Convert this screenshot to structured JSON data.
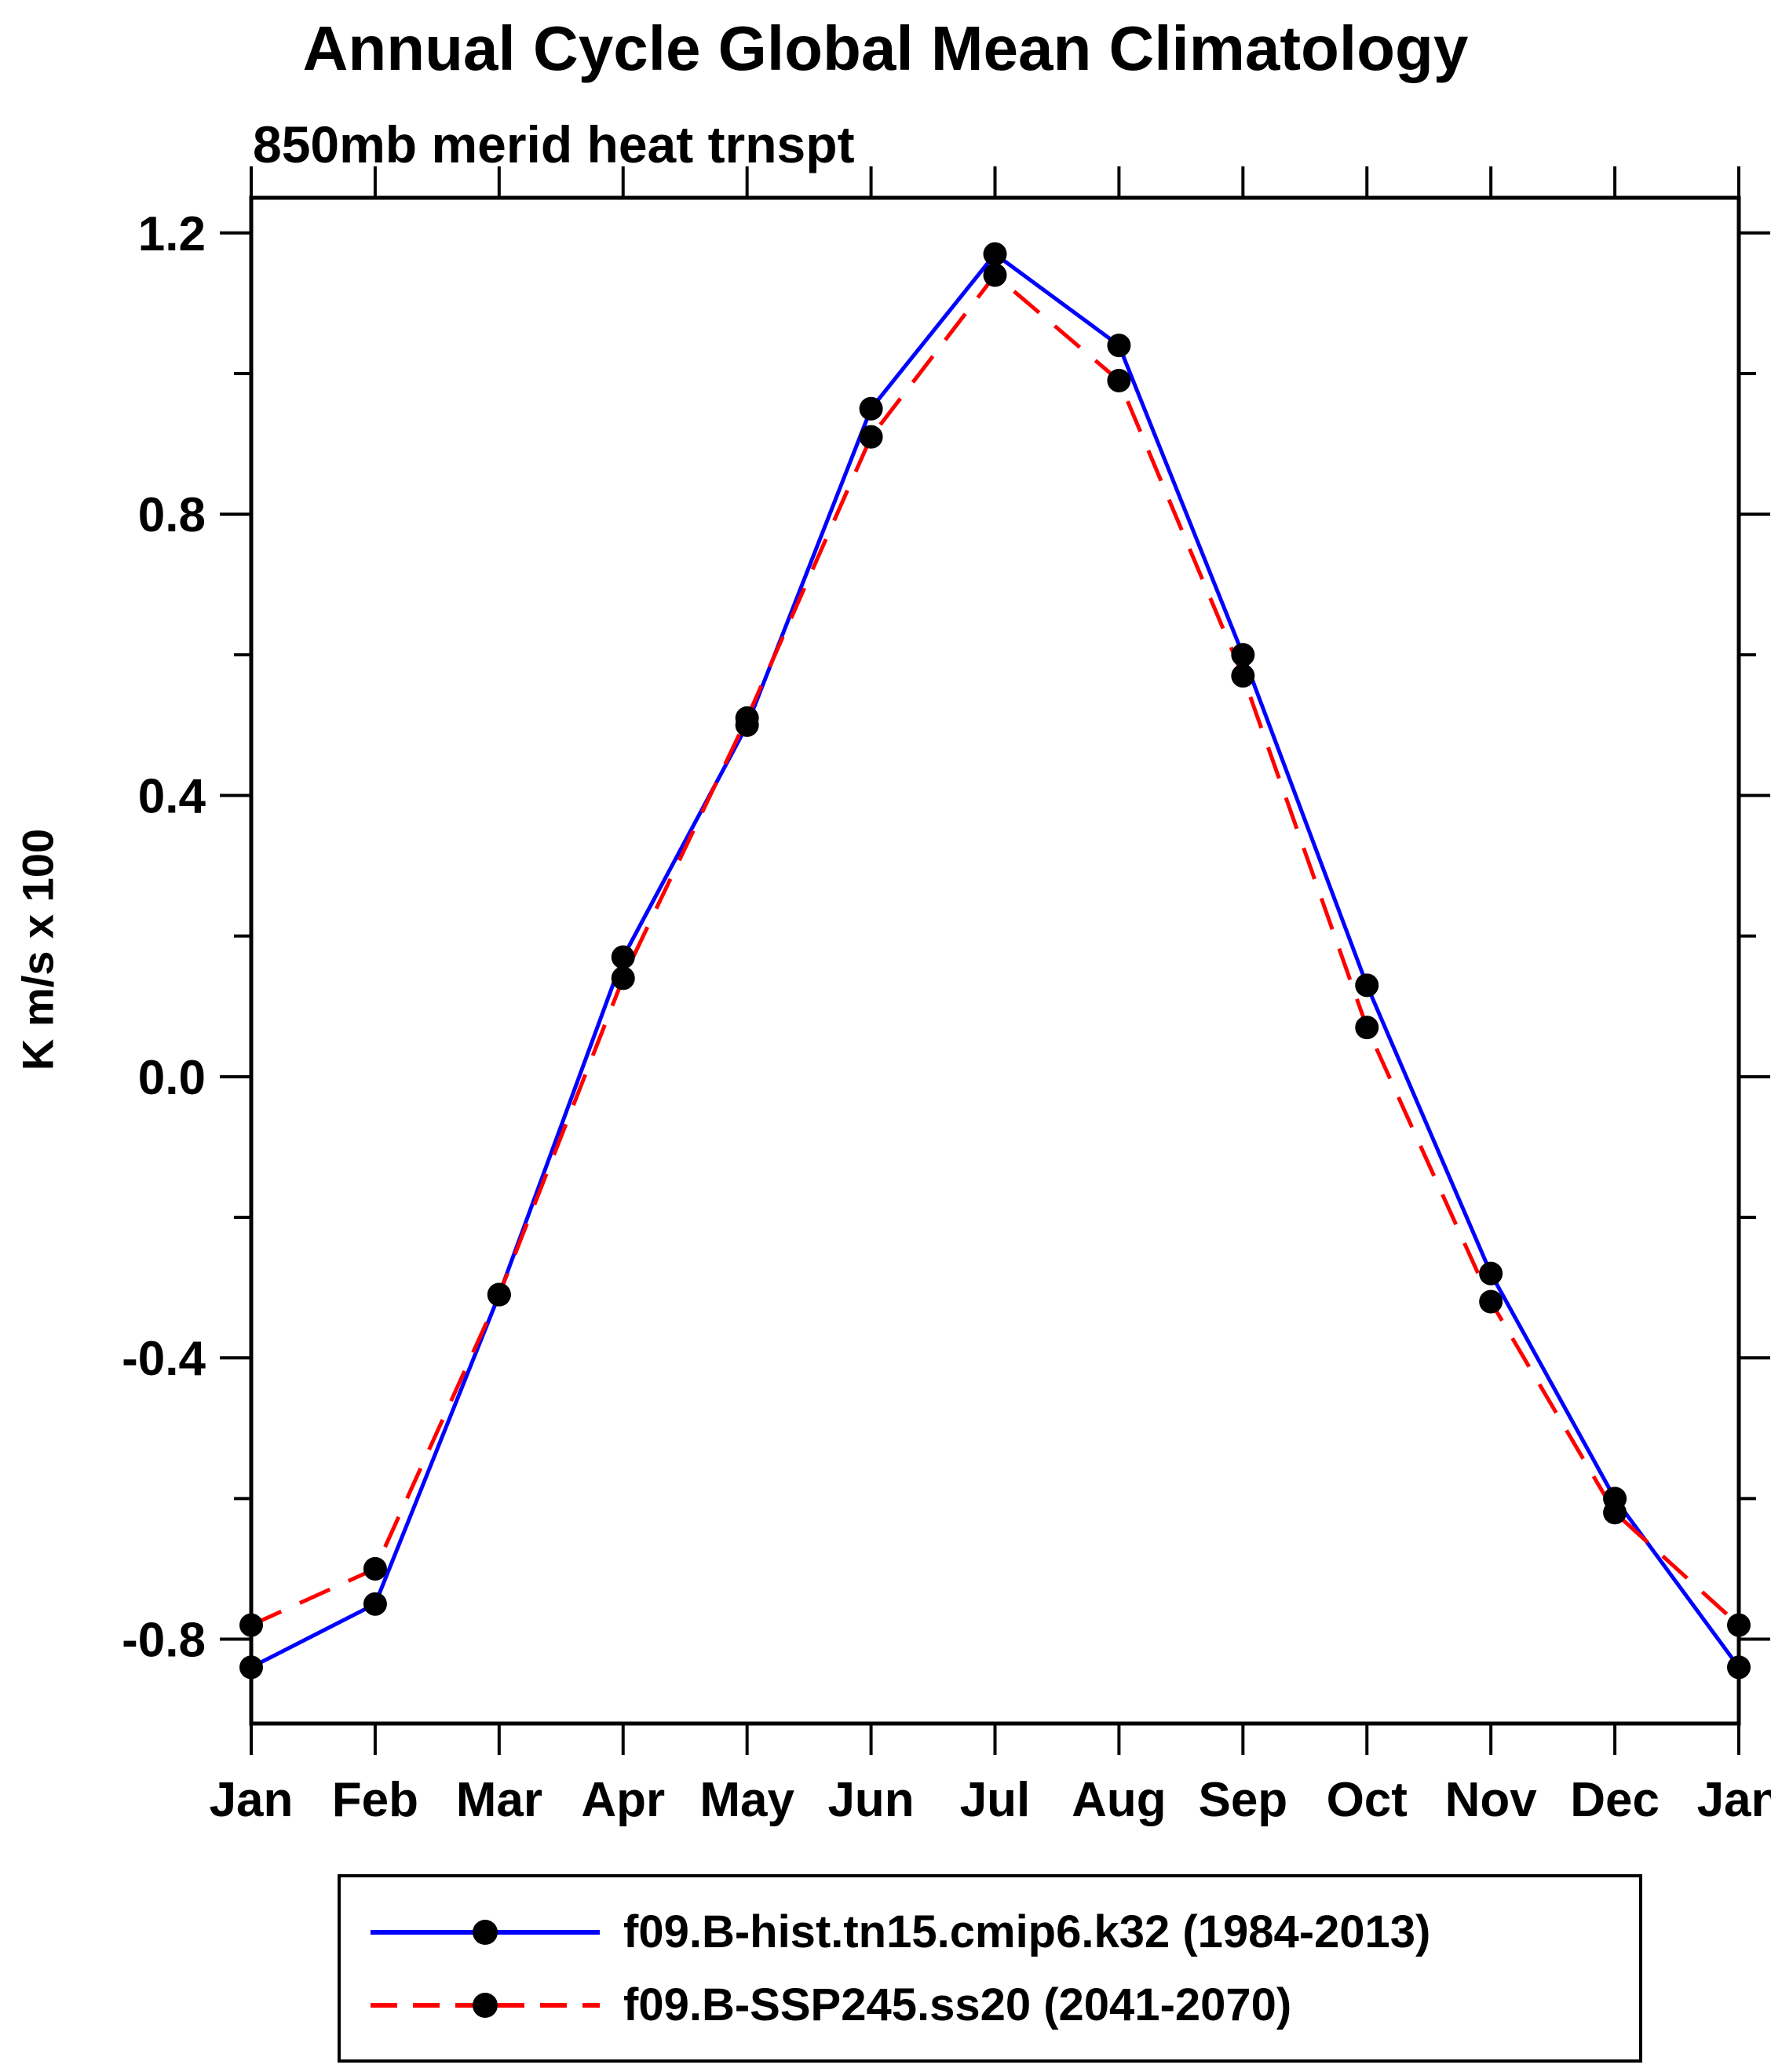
{
  "page": {
    "background": "#ffffff"
  },
  "chart_data": {
    "type": "line",
    "title": "Annual Cycle Global Mean Climatology",
    "subtitle": "850mb merid heat trnspt",
    "ylabel": "K m/s x 100",
    "xlabel": "",
    "categories": [
      "Jan",
      "Feb",
      "Mar",
      "Apr",
      "May",
      "Jun",
      "Jul",
      "Aug",
      "Sep",
      "Oct",
      "Nov",
      "Dec",
      "Jan"
    ],
    "ylim": [
      -0.92,
      1.25
    ],
    "yticks": [
      -0.8,
      -0.4,
      0.0,
      0.4,
      0.8,
      1.2
    ],
    "ytick_labels": [
      "-0.8",
      "-0.4",
      "0.0",
      "0.4",
      "0.8",
      "1.2"
    ],
    "minor_ytick_values": [
      -0.6,
      -0.2,
      0.2,
      0.6,
      1.0
    ],
    "grid": false,
    "legend_position": "bottom",
    "axis_color": "#000000",
    "series": [
      {
        "name": "f09.B-hist.tn15.cmip6.k32 (1984-2013)",
        "color": "#0000ff",
        "line_style": "solid",
        "marker": "filled-circle",
        "marker_color": "#000000",
        "values": [
          -0.84,
          -0.75,
          -0.31,
          0.17,
          0.5,
          0.95,
          1.17,
          1.04,
          0.6,
          0.13,
          -0.28,
          -0.6,
          -0.84
        ]
      },
      {
        "name": "f09.B-SSP245.ss20 (2041-2070)",
        "color": "#ff0000",
        "line_style": "dashed",
        "marker": "filled-circle",
        "marker_color": "#000000",
        "values": [
          -0.78,
          -0.7,
          -0.31,
          0.14,
          0.51,
          0.91,
          1.14,
          0.99,
          0.57,
          0.07,
          -0.32,
          -0.62,
          -0.78
        ]
      }
    ]
  }
}
